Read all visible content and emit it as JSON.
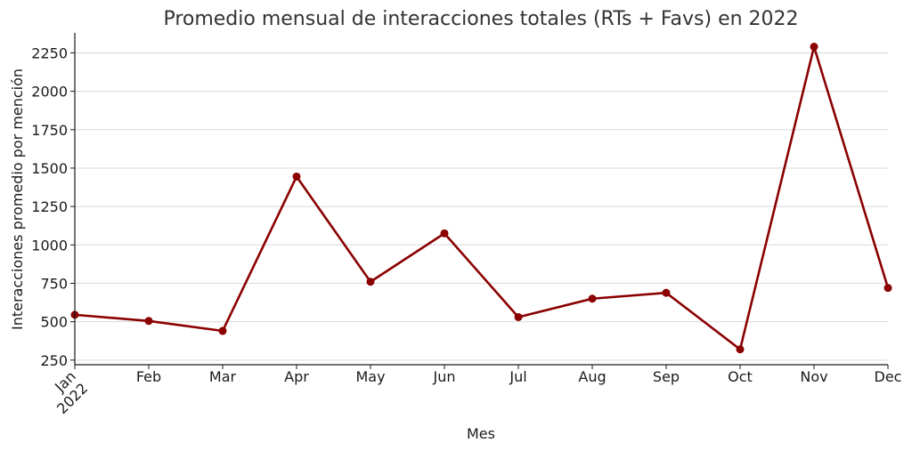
{
  "chart_data": {
    "type": "line",
    "title": "Promedio mensual de interacciones totales (RTs + Favs) en 2022",
    "xlabel": "Mes",
    "ylabel": "Interacciones promedio por mención",
    "categories": [
      "Jan\n2022",
      "Feb",
      "Mar",
      "Apr",
      "May",
      "Jun",
      "Jul",
      "Aug",
      "Sep",
      "Oct",
      "Nov",
      "Dec"
    ],
    "x": [
      "2022-01",
      "2022-02",
      "2022-03",
      "2022-04",
      "2022-05",
      "2022-06",
      "2022-07",
      "2022-08",
      "2022-09",
      "2022-10",
      "2022-11",
      "2022-12"
    ],
    "series": [
      {
        "values": [
          545,
          505,
          440,
          1445,
          760,
          1075,
          530,
          650,
          688,
          320,
          2290,
          720
        ],
        "color": "#8b0000"
      }
    ],
    "yticks": [
      250,
      500,
      750,
      1000,
      1250,
      1500,
      1750,
      2000,
      2250
    ],
    "ylim": [
      220,
      2380
    ],
    "grid": true,
    "grid_axis": "y",
    "legend": false
  }
}
